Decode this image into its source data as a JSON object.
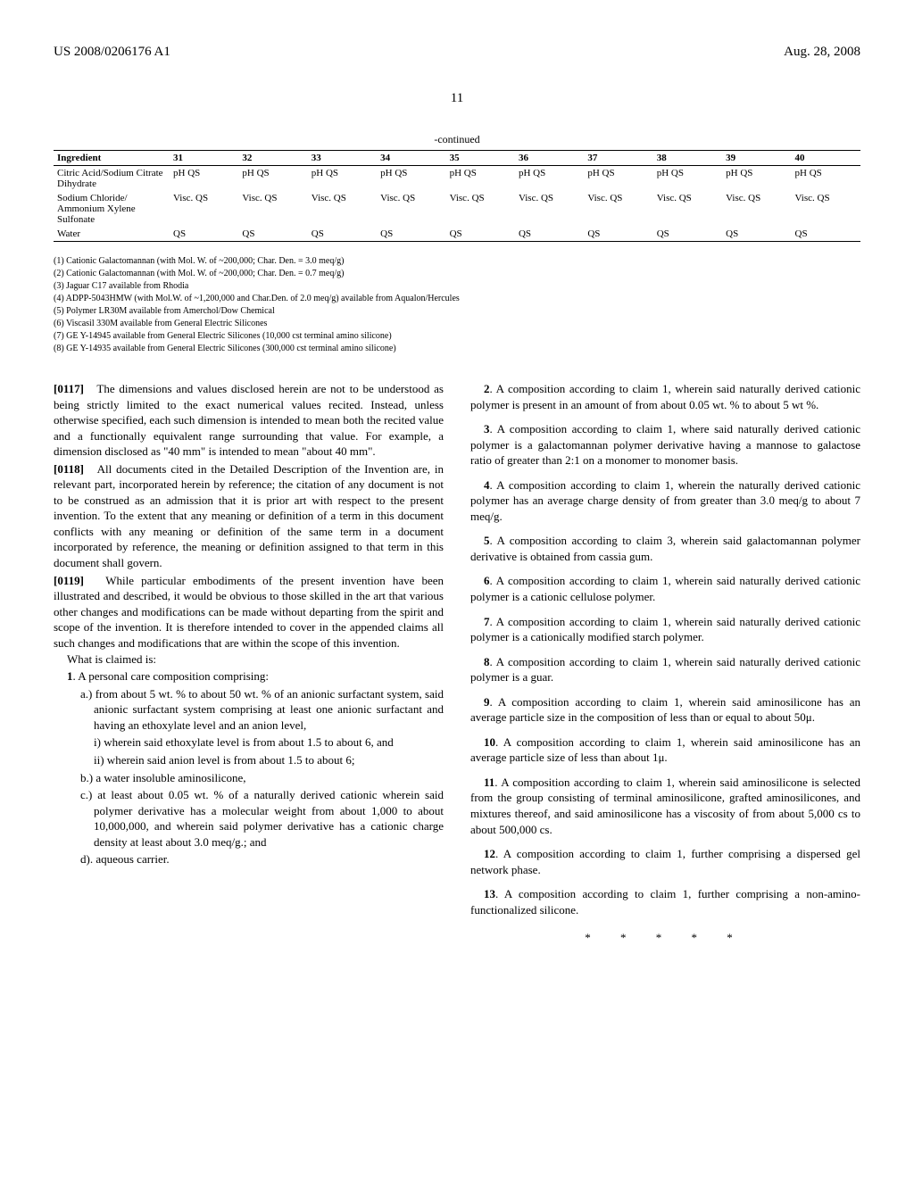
{
  "header": {
    "publication": "US 2008/0206176 A1",
    "date": "Aug. 28, 2008"
  },
  "pageNumber": "11",
  "table": {
    "title": "-continued",
    "headers": [
      "Ingredient",
      "31",
      "32",
      "33",
      "34",
      "35",
      "36",
      "37",
      "38",
      "39",
      "40"
    ],
    "rows": [
      [
        "Citric Acid/Sodium Citrate Dihydrate",
        "pH QS",
        "pH QS",
        "pH QS",
        "pH QS",
        "pH QS",
        "pH QS",
        "pH QS",
        "pH QS",
        "pH QS",
        "pH QS"
      ],
      [
        "Sodium Chloride/ Ammonium Xylene Sulfonate",
        "Visc. QS",
        "Visc. QS",
        "Visc. QS",
        "Visc. QS",
        "Visc. QS",
        "Visc. QS",
        "Visc. QS",
        "Visc. QS",
        "Visc. QS",
        "Visc. QS"
      ],
      [
        "Water",
        "QS",
        "QS",
        "QS",
        "QS",
        "QS",
        "QS",
        "QS",
        "QS",
        "QS",
        "QS"
      ]
    ]
  },
  "footnotes": [
    "(1) Cationic Galactomannan (with Mol. W. of ~200,000; Char. Den. = 3.0 meq/g)",
    "(2) Cationic Galactomannan (with Mol. W. of ~200,000; Char. Den. = 0.7 meq/g)",
    "(3) Jaguar C17 available from Rhodia",
    "(4) ADPP-5043HMW (with Mol.W. of ~1,200,000 and Char.Den. of 2.0 meq/g) available from Aqualon/Hercules",
    "(5) Polymer LR30M available from Amerchol/Dow Chemical",
    "(6) Viscasil 330M available from General Electric Silicones",
    "(7) GE Y-14945 available from General Electric Silicones (10,000 cst terminal amino silicone)",
    "(8) GE Y-14935 available from General Electric Silicones (300,000 cst terminal amino silicone)"
  ],
  "leftColumn": {
    "para117": {
      "num": "[0117]",
      "text": "The dimensions and values disclosed herein are not to be understood as being strictly limited to the exact numerical values recited. Instead, unless otherwise specified, each such dimension is intended to mean both the recited value and a functionally equivalent range surrounding that value. For example, a dimension disclosed as \"40 mm\" is intended to mean \"about 40 mm\"."
    },
    "para118": {
      "num": "[0118]",
      "text": "All documents cited in the Detailed Description of the Invention are, in relevant part, incorporated herein by reference; the citation of any document is not to be construed as an admission that it is prior art with respect to the present invention. To the extent that any meaning or definition of a term in this document conflicts with any meaning or definition of the same term in a document incorporated by reference, the meaning or definition assigned to that term in this document shall govern."
    },
    "para119": {
      "num": "[0119]",
      "text": "While particular embodiments of the present invention have been illustrated and described, it would be obvious to those skilled in the art that various other changes and modifications can be made without departing from the spirit and scope of the invention. It is therefore intended to cover in the appended claims all such changes and modifications that are within the scope of this invention."
    },
    "claimsIntro": "What is claimed is:",
    "claim1": {
      "num": "1",
      "text": ". A personal care composition comprising:",
      "subs": [
        "a.) from about 5 wt. % to about 50 wt. % of an anionic surfactant system, said anionic surfactant system comprising at least one anionic surfactant and having an ethoxylate level and an anion level,",
        "i) wherein said ethoxylate level is from about 1.5 to about 6, and",
        "ii) wherein said anion level is from about 1.5 to about 6;",
        "b.) a water insoluble aminosilicone,",
        "c.) at least about 0.05 wt. % of a naturally derived cationic wherein said polymer derivative has a molecular weight from about 1,000 to about 10,000,000, and wherein said polymer derivative has a cationic charge density at least about 3.0 meq/g.; and",
        "d). aqueous carrier."
      ]
    }
  },
  "rightColumn": {
    "claims": [
      {
        "num": "2",
        "text": ". A composition according to claim 1, wherein said naturally derived cationic polymer is present in an amount of from about 0.05 wt. % to about 5 wt %."
      },
      {
        "num": "3",
        "text": ". A composition according to claim 1, where said naturally derived cationic polymer is a galactomannan polymer derivative having a mannose to galactose ratio of greater than 2:1 on a monomer to monomer basis."
      },
      {
        "num": "4",
        "text": ". A composition according to claim 1, wherein the naturally derived cationic polymer has an average charge density of from greater than 3.0 meq/g to about 7 meq/g."
      },
      {
        "num": "5",
        "text": ". A composition according to claim 3, wherein said galactomannan polymer derivative is obtained from cassia gum."
      },
      {
        "num": "6",
        "text": ". A composition according to claim 1, wherein said naturally derived cationic polymer is a cationic cellulose polymer."
      },
      {
        "num": "7",
        "text": ". A composition according to claim 1, wherein said naturally derived cationic polymer is a cationically modified starch polymer."
      },
      {
        "num": "8",
        "text": ". A composition according to claim 1, wherein said naturally derived cationic polymer is a guar."
      },
      {
        "num": "9",
        "text": ". A composition according to claim 1, wherein said aminosilicone has an average particle size in the composition of less than or equal to about 50μ."
      },
      {
        "num": "10",
        "text": ". A composition according to claim 1, wherein said aminosilicone has an average particle size of less than about 1μ."
      },
      {
        "num": "11",
        "text": ". A composition according to claim 1, wherein said aminosilicone is selected from the group consisting of terminal aminosilicone, grafted aminosilicones, and mixtures thereof, and said aminosilicone has a viscosity of from about 5,000 cs to about 500,000 cs."
      },
      {
        "num": "12",
        "text": ". A composition according to claim 1, further comprising a dispersed gel network phase."
      },
      {
        "num": "13",
        "text": ". A composition according to claim 1, further comprising a non-amino-functionalized silicone."
      }
    ],
    "stars": "* * * * *"
  }
}
